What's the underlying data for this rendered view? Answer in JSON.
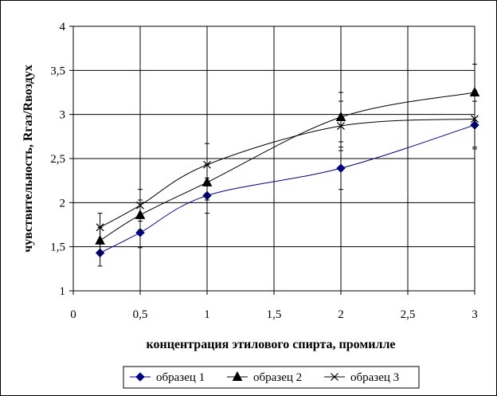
{
  "chart_data": {
    "type": "line",
    "title": "",
    "xlabel": "концентрация этилового спирта, промилле",
    "ylabel": "чувствительность, Rгаз/Rвоздух",
    "xlim": [
      0,
      3
    ],
    "ylim": [
      1,
      4
    ],
    "x_ticks": [
      "0",
      "0,5",
      "1",
      "1,5",
      "2",
      "2,5",
      "3"
    ],
    "y_ticks": [
      "1",
      "1,5",
      "2",
      "2,5",
      "3",
      "3,5",
      "4"
    ],
    "grid": true,
    "legend_position": "bottom",
    "x": [
      0.2,
      0.5,
      1,
      2,
      3
    ],
    "series": [
      {
        "name": "образец 1",
        "marker": "diamond",
        "color": "#000080",
        "values": [
          1.43,
          1.66,
          2.08,
          2.39,
          2.88
        ],
        "error": [
          0.15,
          0.17,
          0.2,
          0.24,
          0.27
        ]
      },
      {
        "name": "образец 2",
        "marker": "triangle",
        "color": "#000000",
        "values": [
          1.57,
          1.86,
          2.23,
          2.97,
          3.25
        ],
        "error": [
          0.15,
          0.17,
          0.2,
          0.28,
          0.32
        ]
      },
      {
        "name": "образец 3",
        "marker": "x",
        "color": "#000000",
        "values": [
          1.72,
          1.97,
          2.43,
          2.87,
          2.95
        ],
        "error": [
          0.16,
          0.18,
          0.24,
          0.28,
          0.32
        ]
      }
    ]
  }
}
